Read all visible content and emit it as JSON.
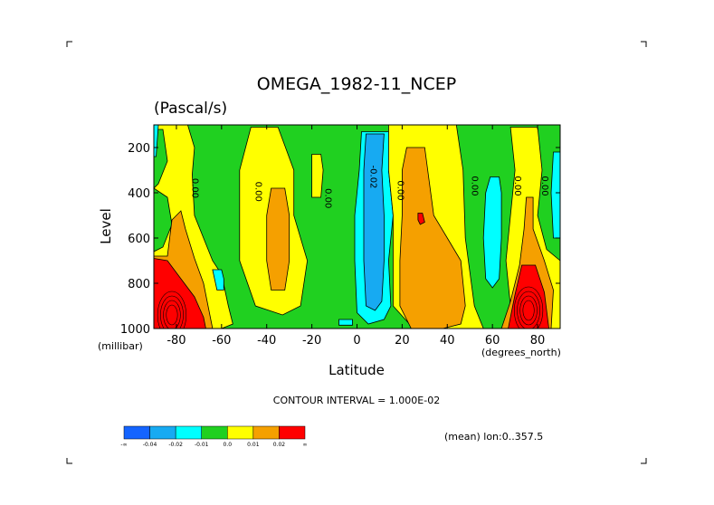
{
  "chart_data": {
    "type": "heatmap",
    "title": "OMEGA_1982-11_NCEP",
    "units": "(Pascal/s)",
    "xlabel": "Latitude",
    "ylabel": "Level",
    "x_unit_label": "(degrees_north)",
    "y_unit_label": "(millibar)",
    "xlim": [
      -90,
      90
    ],
    "ylim": [
      1000,
      100
    ],
    "x_ticks": [
      -80,
      -60,
      -40,
      -20,
      0,
      20,
      40,
      60,
      80
    ],
    "y_ticks": [
      200,
      400,
      600,
      800,
      1000
    ],
    "contour_interval_text": "CONTOUR INTERVAL = 1.000E-02",
    "footnote": "(mean) lon:0..357.5",
    "contour_labels": [
      {
        "text": "0.00",
        "x": -73,
        "y": 380
      },
      {
        "text": "0.00",
        "x": -45,
        "y": 395
      },
      {
        "text": "0.00",
        "x": -14,
        "y": 425
      },
      {
        "text": "-0.02",
        "x": 6,
        "y": 330
      },
      {
        "text": "0.00",
        "x": 18,
        "y": 390
      },
      {
        "text": "0.00",
        "x": 51,
        "y": 370
      },
      {
        "text": "0.00",
        "x": 70,
        "y": 370
      },
      {
        "text": "0.00",
        "x": 82,
        "y": 370
      }
    ],
    "colorbar": {
      "colors": [
        "#1464ff",
        "#17aaf2",
        "#00ffff",
        "#20d020",
        "#ffff00",
        "#f5a000",
        "#ff0000"
      ],
      "labels": [
        "-∞",
        "-0.04",
        "-0.02",
        "-0.01",
        "0.0",
        "0.01",
        "0.02",
        "∞"
      ]
    },
    "regions": [
      {
        "level": "0to1",
        "pts": [
          [
            -90,
            100
          ],
          [
            -75,
            100
          ],
          [
            -72,
            200
          ],
          [
            -73,
            320
          ],
          [
            -72,
            500
          ],
          [
            -68,
            600
          ],
          [
            -64,
            700
          ],
          [
            -60,
            760
          ],
          [
            -57,
            900
          ],
          [
            -55,
            980
          ],
          [
            -60,
            1000
          ],
          [
            -90,
            1000
          ]
        ]
      },
      {
        "level": "neg0",
        "pts": [
          [
            -90,
            120
          ],
          [
            -86,
            120
          ],
          [
            -84,
            260
          ],
          [
            -88,
            360
          ],
          [
            -90,
            380
          ]
        ]
      },
      {
        "level": "neg0",
        "pts": [
          [
            -90,
            380
          ],
          [
            -84,
            420
          ],
          [
            -82,
            540
          ],
          [
            -86,
            640
          ],
          [
            -90,
            660
          ]
        ]
      },
      {
        "level": "1to2",
        "pts": [
          [
            -90,
            680
          ],
          [
            -84,
            680
          ],
          [
            -82,
            520
          ],
          [
            -78,
            480
          ],
          [
            -76,
            560
          ],
          [
            -72,
            690
          ],
          [
            -68,
            800
          ],
          [
            -66,
            900
          ],
          [
            -64,
            1000
          ],
          [
            -90,
            1000
          ]
        ]
      },
      {
        "level": "gt2",
        "pts": [
          [
            -90,
            690
          ],
          [
            -84,
            700
          ],
          [
            -78,
            780
          ],
          [
            -72,
            860
          ],
          [
            -68,
            950
          ],
          [
            -67,
            1000
          ],
          [
            -90,
            1000
          ]
        ]
      },
      {
        "level": "0to1",
        "pts": [
          [
            -47,
            110
          ],
          [
            -35,
            110
          ],
          [
            -28,
            300
          ],
          [
            -28,
            500
          ],
          [
            -22,
            700
          ],
          [
            -25,
            900
          ],
          [
            -33,
            940
          ],
          [
            -45,
            900
          ],
          [
            -52,
            700
          ],
          [
            -52,
            500
          ],
          [
            -52,
            300
          ]
        ]
      },
      {
        "level": "1to2",
        "pts": [
          [
            -38,
            380
          ],
          [
            -32,
            380
          ],
          [
            -30,
            500
          ],
          [
            -30,
            700
          ],
          [
            -32,
            830
          ],
          [
            -38,
            830
          ],
          [
            -40,
            700
          ],
          [
            -40,
            500
          ]
        ]
      },
      {
        "level": "neg1",
        "pts": [
          [
            -64,
            740
          ],
          [
            -60,
            740
          ],
          [
            -59,
            780
          ],
          [
            -59,
            830
          ],
          [
            -62,
            830
          ]
        ]
      },
      {
        "level": "0to1",
        "pts": [
          [
            -20,
            230
          ],
          [
            -16,
            230
          ],
          [
            -15,
            300
          ],
          [
            -16,
            420
          ],
          [
            -20,
            420
          ]
        ]
      },
      {
        "level": "neg1",
        "pts": [
          [
            -8,
            960
          ],
          [
            -2,
            960
          ],
          [
            -2,
            985
          ],
          [
            -8,
            985
          ]
        ]
      },
      {
        "level": "neg1",
        "pts": [
          [
            2,
            130
          ],
          [
            14,
            130
          ],
          [
            14,
            300
          ],
          [
            16,
            500
          ],
          [
            14,
            700
          ],
          [
            15,
            900
          ],
          [
            12,
            960
          ],
          [
            5,
            980
          ],
          [
            0,
            930
          ],
          [
            -1,
            700
          ],
          [
            -1,
            500
          ],
          [
            1,
            300
          ]
        ]
      },
      {
        "level": "neg2",
        "pts": [
          [
            4,
            140
          ],
          [
            12,
            140
          ],
          [
            11,
            300
          ],
          [
            12,
            500
          ],
          [
            12,
            700
          ],
          [
            11,
            880
          ],
          [
            8,
            920
          ],
          [
            4,
            900
          ],
          [
            3,
            700
          ],
          [
            3,
            500
          ],
          [
            3,
            300
          ]
        ]
      },
      {
        "level": "0to1",
        "pts": [
          [
            14,
            100
          ],
          [
            44,
            100
          ],
          [
            47,
            300
          ],
          [
            48,
            600
          ],
          [
            52,
            900
          ],
          [
            56,
            1000
          ],
          [
            25,
            1000
          ],
          [
            16,
            900
          ],
          [
            16,
            700
          ],
          [
            16,
            500
          ],
          [
            14,
            300
          ]
        ]
      },
      {
        "level": "1to2",
        "pts": [
          [
            22,
            200
          ],
          [
            30,
            200
          ],
          [
            34,
            500
          ],
          [
            40,
            600
          ],
          [
            46,
            700
          ],
          [
            48,
            900
          ],
          [
            46,
            980
          ],
          [
            38,
            1000
          ],
          [
            24,
            1000
          ],
          [
            19,
            900
          ],
          [
            19,
            700
          ],
          [
            20,
            500
          ],
          [
            20,
            300
          ]
        ]
      },
      {
        "level": "gt2",
        "pts": [
          [
            27,
            490
          ],
          [
            29,
            490
          ],
          [
            30,
            530
          ],
          [
            28,
            540
          ],
          [
            27,
            520
          ]
        ]
      },
      {
        "level": "neg1",
        "pts": [
          [
            59,
            330
          ],
          [
            63,
            330
          ],
          [
            64,
            400
          ],
          [
            64,
            600
          ],
          [
            63,
            780
          ],
          [
            60,
            820
          ],
          [
            57,
            780
          ],
          [
            56,
            600
          ],
          [
            57,
            400
          ]
        ]
      },
      {
        "level": "0to1",
        "pts": [
          [
            68,
            110
          ],
          [
            80,
            110
          ],
          [
            82,
            300
          ],
          [
            80,
            500
          ],
          [
            84,
            650
          ],
          [
            90,
            700
          ],
          [
            90,
            1000
          ],
          [
            72,
            1000
          ],
          [
            68,
            900
          ],
          [
            66,
            700
          ],
          [
            68,
            500
          ],
          [
            70,
            300
          ]
        ]
      },
      {
        "level": "1to2",
        "pts": [
          [
            75,
            420
          ],
          [
            78,
            420
          ],
          [
            78,
            560
          ],
          [
            83,
            700
          ],
          [
            87,
            830
          ],
          [
            86,
            1000
          ],
          [
            64,
            1000
          ],
          [
            68,
            880
          ],
          [
            72,
            720
          ],
          [
            74,
            560
          ]
        ]
      },
      {
        "level": "gt2",
        "pts": [
          [
            73,
            720
          ],
          [
            79,
            720
          ],
          [
            83,
            840
          ],
          [
            85,
            1000
          ],
          [
            67,
            1000
          ],
          [
            70,
            850
          ]
        ]
      },
      {
        "level": "neg1",
        "pts": [
          [
            87,
            220
          ],
          [
            90,
            220
          ],
          [
            90,
            600
          ],
          [
            87,
            600
          ],
          [
            86,
            400
          ]
        ]
      },
      {
        "level": "neg1",
        "pts": [
          [
            -90,
            100
          ],
          [
            -88,
            100
          ],
          [
            -89,
            240
          ],
          [
            -90,
            240
          ]
        ]
      }
    ]
  }
}
